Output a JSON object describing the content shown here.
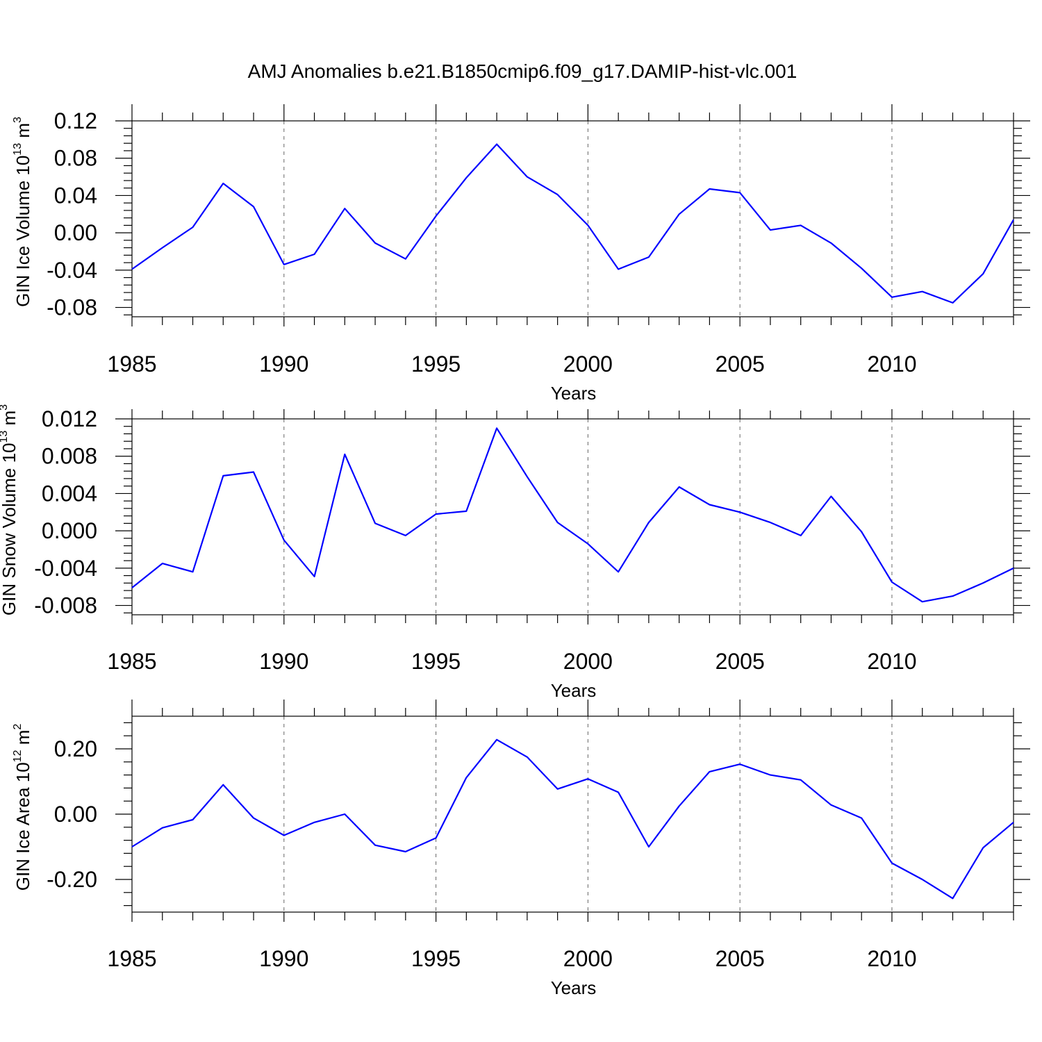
{
  "title": "AMJ Anomalies b.e21.B1850cmip6.f09_g17.DAMIP-hist-vlc.001",
  "colors": {
    "line": "#0000ff",
    "axis": "#000000",
    "background": "#ffffff"
  },
  "chart_data": [
    {
      "type": "line",
      "ylabel": {
        "main": "GIN Ice Volume 10",
        "exp": "13",
        "unit": " m",
        "unit_exp": "3"
      },
      "xlabel": "Years",
      "xlim": [
        1985,
        2014
      ],
      "ylim": [
        -0.09,
        0.12
      ],
      "yticks": [
        0.12,
        0.08,
        0.04,
        0.0,
        -0.04,
        -0.08
      ],
      "ytick_labels": [
        "0.12",
        "0.08",
        "0.04",
        "0.00",
        "-0.04",
        "-0.08"
      ],
      "xticks": [
        1985,
        1990,
        1995,
        2000,
        2005,
        2010
      ],
      "xtick_labels": [
        "1985",
        "1990",
        "1995",
        "2000",
        "2005",
        "2010"
      ],
      "x": [
        1985,
        1986,
        1987,
        1988,
        1989,
        1990,
        1991,
        1992,
        1993,
        1994,
        1995,
        1996,
        1997,
        1998,
        1999,
        2000,
        2001,
        2002,
        2003,
        2004,
        2005,
        2006,
        2007,
        2008,
        2009,
        2010,
        2011,
        2012,
        2013,
        2014
      ],
      "series": [
        {
          "name": "GIN Ice Volume",
          "values": [
            -0.039,
            -0.016,
            0.006,
            0.053,
            0.028,
            -0.034,
            -0.023,
            0.026,
            -0.011,
            -0.028,
            0.018,
            0.059,
            0.095,
            0.06,
            0.041,
            0.008,
            -0.039,
            -0.026,
            0.02,
            0.047,
            0.043,
            0.003,
            0.008,
            -0.011,
            -0.038,
            -0.069,
            -0.063,
            -0.075,
            -0.044,
            0.014
          ]
        }
      ]
    },
    {
      "type": "line",
      "ylabel": {
        "main": "GIN Snow Volume 10",
        "exp": "13",
        "unit": " m",
        "unit_exp": "3"
      },
      "xlabel": "Years",
      "xlim": [
        1985,
        2014
      ],
      "ylim": [
        -0.009,
        0.012
      ],
      "yticks": [
        0.012,
        0.008,
        0.004,
        0.0,
        -0.004,
        -0.008
      ],
      "ytick_labels": [
        "0.012",
        "0.008",
        "0.004",
        "0.000",
        "-0.004",
        "-0.008"
      ],
      "xticks": [
        1985,
        1990,
        1995,
        2000,
        2005,
        2010
      ],
      "xtick_labels": [
        "1985",
        "1990",
        "1995",
        "2000",
        "2005",
        "2010"
      ],
      "x": [
        1985,
        1986,
        1987,
        1988,
        1989,
        1990,
        1991,
        1992,
        1993,
        1994,
        1995,
        1996,
        1997,
        1998,
        1999,
        2000,
        2001,
        2002,
        2003,
        2004,
        2005,
        2006,
        2007,
        2008,
        2009,
        2010,
        2011,
        2012,
        2013,
        2014
      ],
      "series": [
        {
          "name": "GIN Snow Volume",
          "values": [
            -0.0061,
            -0.0035,
            -0.0044,
            0.0059,
            0.0063,
            -0.001,
            -0.0049,
            0.0082,
            0.0008,
            -0.0005,
            0.0018,
            0.0021,
            0.011,
            0.0058,
            0.0009,
            -0.0014,
            -0.0044,
            0.0009,
            0.0047,
            0.0028,
            0.002,
            0.0009,
            -0.0005,
            0.0037,
            -0.0001,
            -0.0055,
            -0.0076,
            -0.007,
            -0.0056,
            -0.004
          ]
        }
      ]
    },
    {
      "type": "line",
      "ylabel": {
        "main": "GIN Ice Area 10",
        "exp": "12",
        "unit": " m",
        "unit_exp": "2"
      },
      "xlabel": "Years",
      "xlim": [
        1985,
        2014
      ],
      "ylim": [
        -0.3,
        0.3
      ],
      "yticks": [
        0.2,
        0.0,
        -0.2
      ],
      "ytick_labels": [
        "0.20",
        "0.00",
        "-0.20"
      ],
      "xticks": [
        1985,
        1990,
        1995,
        2000,
        2005,
        2010
      ],
      "xtick_labels": [
        "1985",
        "1990",
        "1995",
        "2000",
        "2005",
        "2010"
      ],
      "x": [
        1985,
        1986,
        1987,
        1988,
        1989,
        1990,
        1991,
        1992,
        1993,
        1994,
        1995,
        1996,
        1997,
        1998,
        1999,
        2000,
        2001,
        2002,
        2003,
        2004,
        2005,
        2006,
        2007,
        2008,
        2009,
        2010,
        2011,
        2012,
        2013,
        2014
      ],
      "series": [
        {
          "name": "GIN Ice Area",
          "values": [
            -0.1,
            -0.042,
            -0.017,
            0.09,
            -0.012,
            -0.065,
            -0.025,
            0.0,
            -0.095,
            -0.115,
            -0.073,
            0.112,
            0.228,
            0.175,
            0.077,
            0.108,
            0.067,
            -0.1,
            0.025,
            0.13,
            0.153,
            0.12,
            0.105,
            0.028,
            -0.012,
            -0.15,
            -0.2,
            -0.258,
            -0.103,
            -0.025
          ]
        }
      ]
    }
  ]
}
